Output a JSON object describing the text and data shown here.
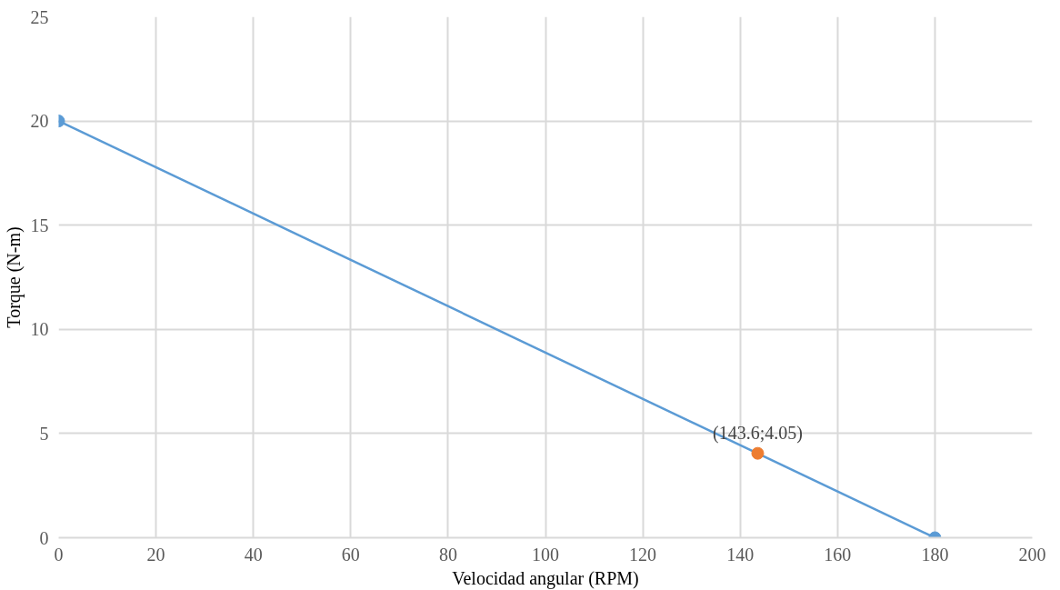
{
  "chart_data": {
    "type": "line",
    "xlabel": "Velocidad angular (RPM)",
    "ylabel": "Torque (N-m)",
    "series": [
      {
        "color": "#5b9bd5",
        "x": [
          0,
          180
        ],
        "values": [
          20,
          0
        ],
        "marker": "circle"
      },
      {
        "type": "scatter",
        "color": "#ed7d31",
        "x": [
          143.6
        ],
        "values": [
          4.05
        ],
        "marker": "circle"
      }
    ],
    "annotations": [
      {
        "text": "(143.6;4.05)",
        "x": 143.6,
        "y": 4.05
      }
    ],
    "xlim": [
      0,
      200
    ],
    "xticks": [
      0,
      20,
      40,
      60,
      80,
      100,
      120,
      140,
      160,
      180,
      200
    ],
    "ylim": [
      0,
      25
    ],
    "yticks": [
      0,
      5,
      10,
      15,
      20,
      25
    ],
    "grid": true,
    "line_style": "solid"
  }
}
